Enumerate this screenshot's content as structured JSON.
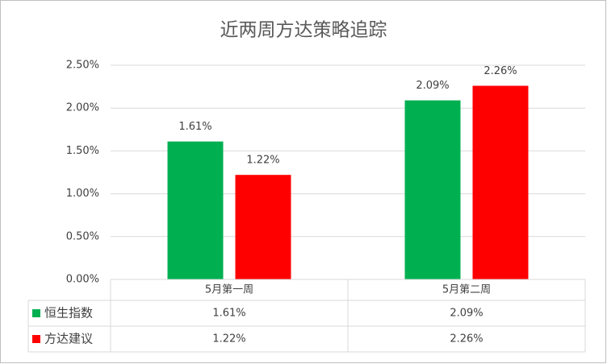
{
  "chart_data": {
    "type": "bar",
    "title": "近两周方达策略追踪",
    "categories": [
      "5月第一周",
      "5月第二周"
    ],
    "series": [
      {
        "name": "恒生指数",
        "color": "#00b050",
        "values": [
          1.61,
          2.09
        ],
        "value_labels": [
          "1.61%",
          "2.09%"
        ]
      },
      {
        "name": "方达建议",
        "color": "#ff0000",
        "values": [
          1.22,
          2.26
        ],
        "value_labels": [
          "1.22%",
          "2.26%"
        ]
      }
    ],
    "ylim": [
      0,
      2.5
    ],
    "yticks": [
      {
        "value": 0,
        "label": "0.00%"
      },
      {
        "value": 0.5,
        "label": "0.50%"
      },
      {
        "value": 1,
        "label": "1.00%"
      },
      {
        "value": 1.5,
        "label": "1.50%"
      },
      {
        "value": 2,
        "label": "2.00%"
      },
      {
        "value": 2.5,
        "label": "2.50%"
      }
    ],
    "grid": true,
    "data_table": true
  }
}
